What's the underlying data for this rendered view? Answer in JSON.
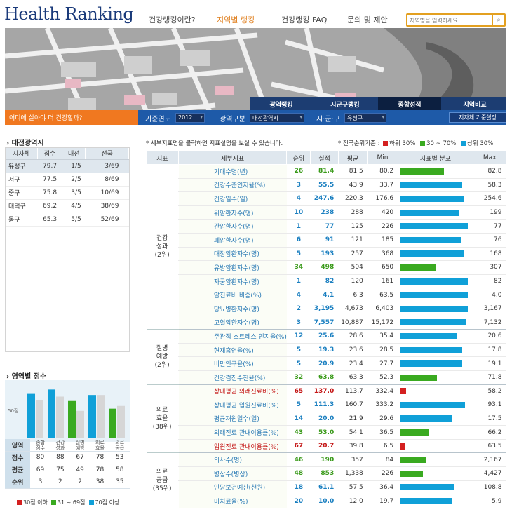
{
  "logo": "Health Ranking",
  "nav": [
    "건강랭킹이란?",
    "지역별 랭킹",
    "건강랭킹 FAQ",
    "문의 및 제안"
  ],
  "search": {
    "placeholder": "지역명을 입력하세요.",
    "icon": "search-icon"
  },
  "slogan": "어디에 살아야 더 건강할까?",
  "tabs": [
    "광역랭킹",
    "시군구랭킹",
    "종합성적",
    "지역비교"
  ],
  "filters": {
    "year_label": "기준연도",
    "year": "2012",
    "region_label": "광역구분",
    "region": "대전광역시",
    "district_label": "시·군·구",
    "district": "유성구",
    "basis_button": "지자체 기준설정"
  },
  "left": {
    "title": "대전광역시",
    "headers": [
      "지자체",
      "점수",
      "대전",
      "전국"
    ],
    "rows": [
      [
        "유성구",
        "79.7",
        "1/5",
        "3/69"
      ],
      [
        "서구",
        "77.5",
        "2/5",
        "8/69"
      ],
      [
        "중구",
        "75.8",
        "3/5",
        "10/69"
      ],
      [
        "대덕구",
        "69.2",
        "4/5",
        "38/69"
      ],
      [
        "동구",
        "65.3",
        "5/5",
        "52/69"
      ]
    ]
  },
  "area": {
    "title": "영역별 점수",
    "y_label": "50점",
    "categories": [
      "종합\n점수",
      "건강\n성과",
      "질병\n예방",
      "의료\n효율",
      "의료\n공급"
    ],
    "row_labels": [
      "영역",
      "점수",
      "평균",
      "순위"
    ],
    "scores": [
      80,
      88,
      67,
      78,
      53
    ],
    "avg": [
      69,
      75,
      49,
      78,
      58
    ],
    "rank": [
      3,
      2,
      2,
      38,
      35
    ],
    "legend": [
      "30점 이하",
      "31 ~ 69점",
      "70점 이상"
    ]
  },
  "note": "* 세부지표명을 클릭하면 지표설명을 보실 수 있습니다.",
  "legend_top": {
    "label": "* 전국순위기준 :",
    "items": [
      "하위 30%",
      "30 ~ 70%",
      "상위 30%"
    ]
  },
  "colors": {
    "red": "#d42020",
    "green": "#3aaa20",
    "blue": "#10a0d8"
  },
  "table": {
    "headers": [
      "지표",
      "세부지표",
      "순위",
      "실적",
      "평균",
      "Min",
      "지표별 분포",
      "Max"
    ],
    "groups": [
      {
        "name": "건강\n성과\n(2위)",
        "rows": [
          [
            "기대수명(년)",
            "26",
            "81.4",
            "81.5",
            "80.2",
            "82.8",
            "green",
            0.62
          ],
          [
            "건강수준인지율(%)",
            "3",
            "55.5",
            "43.9",
            "33.7",
            "58.3",
            "blue",
            0.88
          ],
          [
            "건강일수(일)",
            "4",
            "247.6",
            "220.3",
            "176.6",
            "254.6",
            "blue",
            0.9
          ],
          [
            "위암환자수(명)",
            "10",
            "238",
            "288",
            "420",
            "199",
            "blue",
            0.84
          ],
          [
            "간암환자수(명)",
            "1",
            "77",
            "125",
            "226",
            "77",
            "blue",
            0.96
          ],
          [
            "폐암환자수(명)",
            "6",
            "91",
            "121",
            "185",
            "76",
            "blue",
            0.86
          ],
          [
            "대장암환자수(명)",
            "5",
            "193",
            "257",
            "368",
            "168",
            "blue",
            0.9
          ],
          [
            "유방암환자수(명)",
            "34",
            "498",
            "504",
            "650",
            "307",
            "green",
            0.5
          ],
          [
            "자궁암환자수(명)",
            "1",
            "82",
            "120",
            "161",
            "82",
            "blue",
            0.96
          ],
          [
            "암진료비 비중(%)",
            "4",
            "4.1",
            "6.3",
            "63.5",
            "4.0",
            "blue",
            0.96
          ],
          [
            "당뇨병환자수(명)",
            "2",
            "3,195",
            "4,673",
            "6,403",
            "3,167",
            "blue",
            0.96
          ],
          [
            "고혈압환자수(명)",
            "3",
            "7,557",
            "10,887",
            "15,172",
            "7,132",
            "blue",
            0.94
          ]
        ]
      },
      {
        "name": "질병\n예방\n(2위)",
        "rows": [
          [
            "주관적 스트레스 인지율(%)",
            "12",
            "25.6",
            "28.6",
            "35.4",
            "20.6",
            "blue",
            0.8
          ],
          [
            "현재흡연율(%)",
            "5",
            "19.3",
            "23.6",
            "28.5",
            "17.8",
            "blue",
            0.88
          ],
          [
            "비만인구율(%)",
            "5",
            "20.9",
            "23.4",
            "27.7",
            "19.1",
            "blue",
            0.88
          ],
          [
            "건강검진수진율(%)",
            "32",
            "63.8",
            "63.3",
            "52.3",
            "71.8",
            "green",
            0.52
          ]
        ]
      },
      {
        "name": "의료\n효율\n(38위)",
        "rows": [
          [
            "상대평균 외래진료비(%)",
            "65",
            "137.0",
            "113.7",
            "332.4",
            "58.2",
            "red",
            0.08,
            true
          ],
          [
            "상대평균 입원진료비(%)",
            "5",
            "111.3",
            "160.7",
            "333.2",
            "93.1",
            "blue",
            0.92
          ],
          [
            "평균재원일수(일)",
            "14",
            "20.0",
            "21.9",
            "29.6",
            "17.5",
            "blue",
            0.74
          ],
          [
            "외래진료 관내이용률(%)",
            "43",
            "53.0",
            "54.1",
            "36.5",
            "66.2",
            "green",
            0.4
          ],
          [
            "입원진료 관내이용률(%)",
            "67",
            "20.7",
            "39.8",
            "6.5",
            "63.5",
            "red",
            0.06,
            true
          ]
        ]
      },
      {
        "name": "의료\n공급\n(35위)",
        "rows": [
          [
            "의사수(명)",
            "46",
            "190",
            "357",
            "84",
            "2,167",
            "green",
            0.36
          ],
          [
            "병상수(병상)",
            "48",
            "853",
            "1,338",
            "226",
            "4,427",
            "green",
            0.32
          ],
          [
            "인당보건예산(천원)",
            "18",
            "61.1",
            "57.5",
            "36.4",
            "108.8",
            "blue",
            0.76
          ],
          [
            "미치료율(%)",
            "20",
            "10.0",
            "12.0",
            "19.7",
            "5.9",
            "blue",
            0.74
          ]
        ]
      }
    ]
  }
}
